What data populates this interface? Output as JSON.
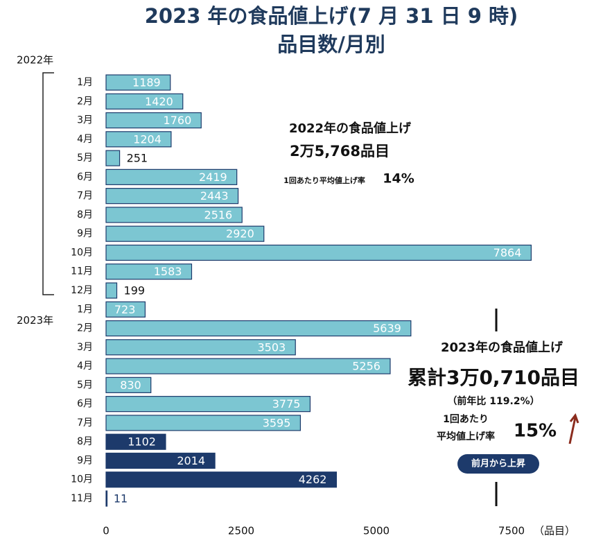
{
  "chart_data": {
    "type": "bar",
    "orientation": "horizontal",
    "title": "2023 年の食品値上げ(7 月 31 日 9 時)",
    "subtitle": "品目数/月別",
    "groups": [
      {
        "label": "2022年",
        "start": 0,
        "end": 11
      },
      {
        "label": "2023年",
        "start": 12,
        "end": 22
      }
    ],
    "categories": [
      "1月",
      "2月",
      "3月",
      "4月",
      "5月",
      "6月",
      "7月",
      "8月",
      "9月",
      "10月",
      "11月",
      "12月",
      "1月",
      "2月",
      "3月",
      "4月",
      "5月",
      "6月",
      "7月",
      "8月",
      "9月",
      "10月",
      "11月"
    ],
    "values": [
      1189,
      1420,
      1760,
      1204,
      251,
      2419,
      2443,
      2516,
      2920,
      7864,
      1583,
      199,
      723,
      5639,
      3503,
      5256,
      830,
      3775,
      3595,
      1102,
      2014,
      4262,
      11
    ],
    "colors": [
      "#7cc6d2",
      "#7cc6d2",
      "#7cc6d2",
      "#7cc6d2",
      "#7cc6d2",
      "#7cc6d2",
      "#7cc6d2",
      "#7cc6d2",
      "#7cc6d2",
      "#7cc6d2",
      "#7cc6d2",
      "#7cc6d2",
      "#7cc6d2",
      "#7cc6d2",
      "#7cc6d2",
      "#7cc6d2",
      "#7cc6d2",
      "#7cc6d2",
      "#7cc6d2",
      "#1d3a6b",
      "#1d3a6b",
      "#1d3a6b",
      "#1d3a6b"
    ],
    "xlim": [
      0,
      8000
    ],
    "xticks": [
      0,
      2500,
      5000,
      7500
    ],
    "x_unit": "（品目）",
    "annotations": {
      "y2022_heading": "2022年の食品値上げ",
      "y2022_total": "2万5,768品目",
      "y2022_rate_label": "1回あたり平均値上げ率",
      "y2022_rate": "14%",
      "y2023_heading": "2023年の食品値上げ",
      "y2023_total": "累計3万0,710品目",
      "y2023_yoy": "（前年比 119.2%）",
      "y2023_rate_label1": "1回あたり",
      "y2023_rate_label2": "平均値上げ率",
      "y2023_rate": "15%",
      "badge": "前月から上昇"
    }
  }
}
